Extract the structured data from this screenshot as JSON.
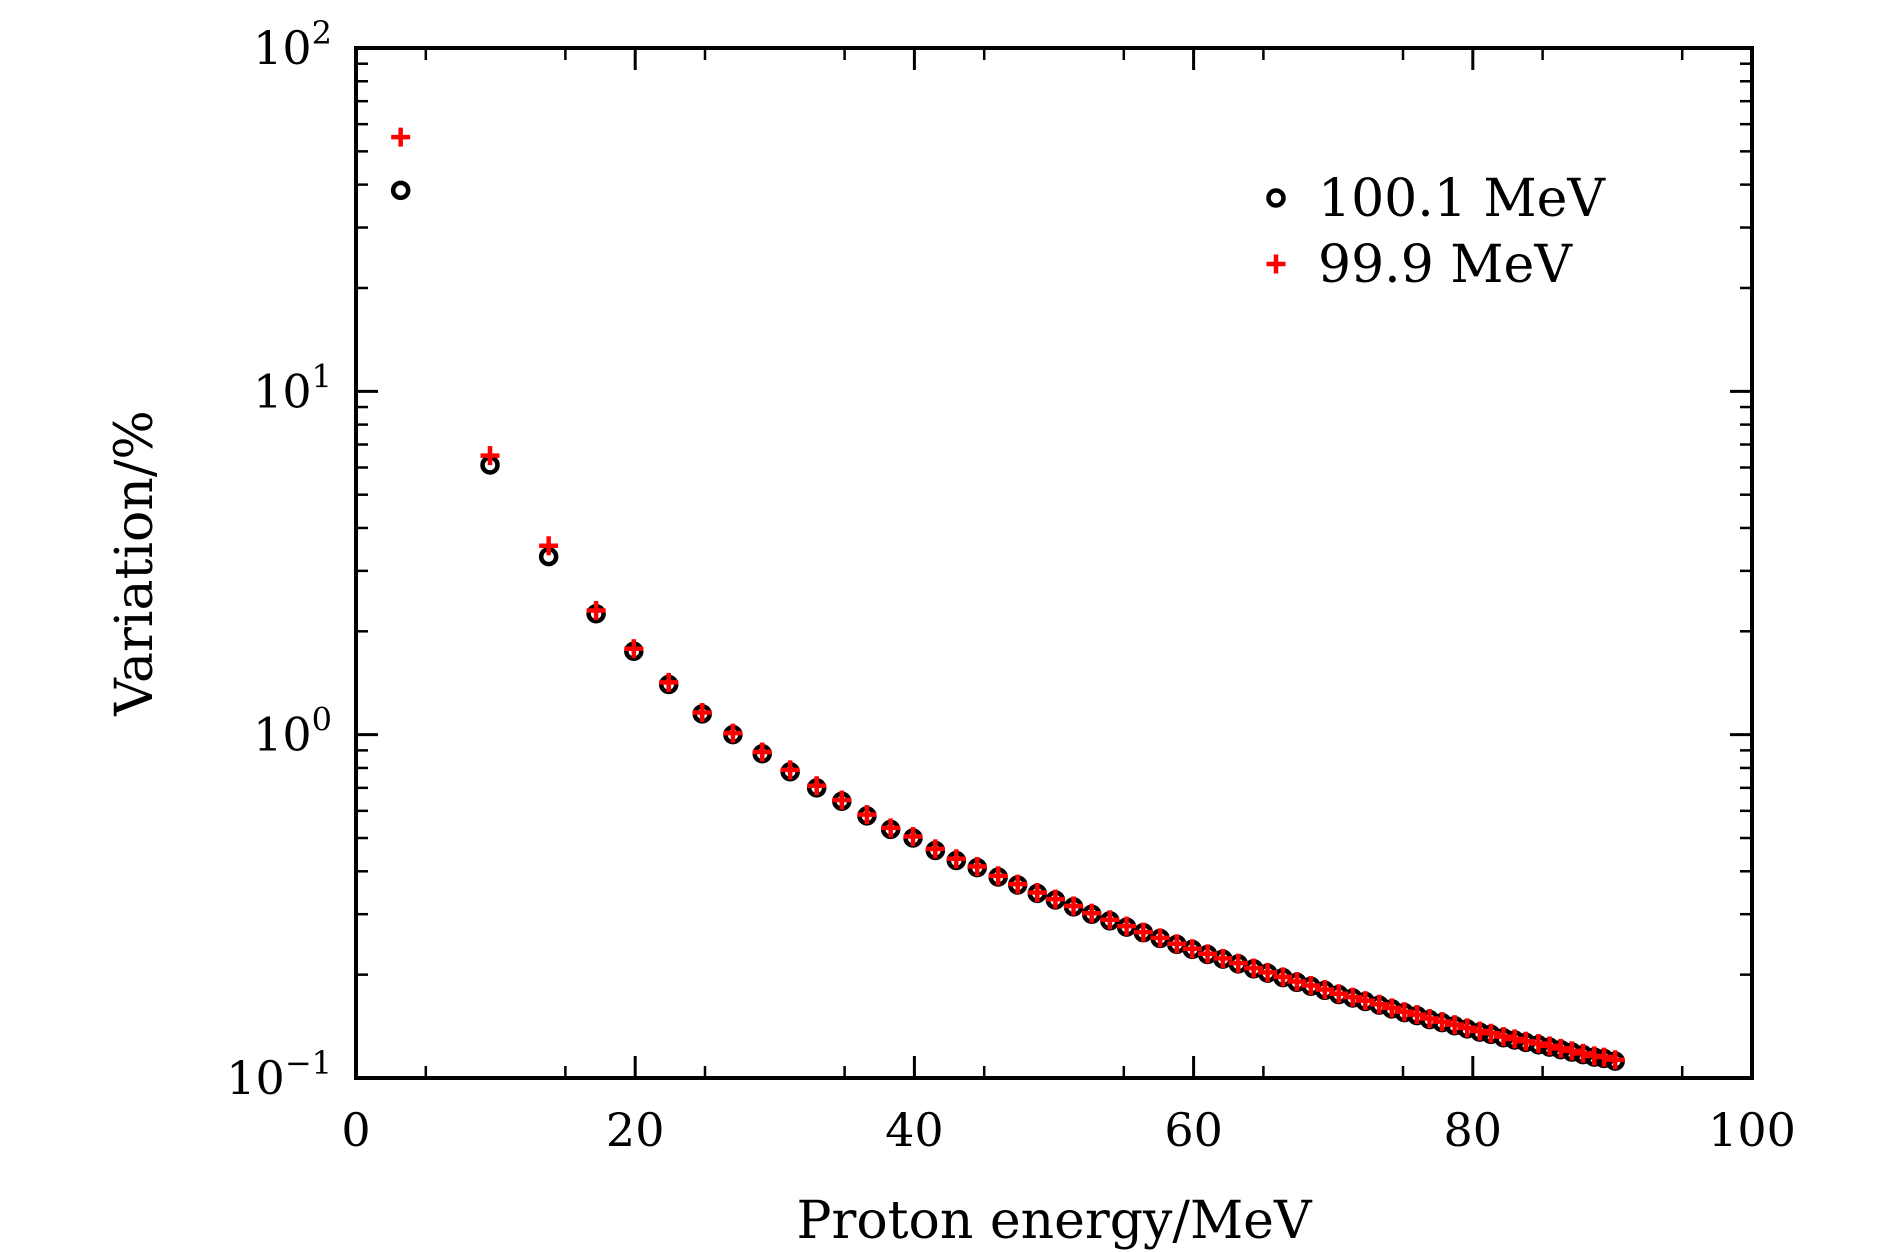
{
  "chart_data": {
    "type": "scatter",
    "title": "",
    "xlabel": "Proton energy/MeV",
    "ylabel": "Variation/%",
    "xlim": [
      0,
      100
    ],
    "ylim": [
      0.1,
      100
    ],
    "yscale": "log",
    "grid": false,
    "legend_position": "top-right",
    "x_ticks": [
      {
        "value": 0,
        "label": "0"
      },
      {
        "value": 20,
        "label": "20"
      },
      {
        "value": 40,
        "label": "40"
      },
      {
        "value": 60,
        "label": "60"
      },
      {
        "value": 80,
        "label": "80"
      },
      {
        "value": 100,
        "label": "100"
      }
    ],
    "y_ticks": [
      {
        "value": 0.1,
        "base": "10",
        "exp": "−1"
      },
      {
        "value": 1,
        "base": "10",
        "exp": "0"
      },
      {
        "value": 10,
        "base": "10",
        "exp": "1"
      },
      {
        "value": 100,
        "base": "10",
        "exp": "2"
      }
    ],
    "series": [
      {
        "name": "100.1 MeV",
        "marker": "open-circle",
        "color": "#000000",
        "x": [
          3.2,
          9.6,
          13.8,
          17.2,
          19.9,
          22.4,
          24.8,
          27.0,
          29.1,
          31.1,
          33.0,
          34.8,
          36.6,
          38.3,
          39.9,
          41.5,
          43.0,
          44.5,
          46.0,
          47.4,
          48.8,
          50.1,
          51.4,
          52.7,
          54.0,
          55.2,
          56.4,
          57.6,
          58.8,
          59.9,
          61.0,
          62.1,
          63.2,
          64.3,
          65.3,
          66.4,
          67.4,
          68.4,
          69.4,
          70.4,
          71.4,
          72.3,
          73.3,
          74.2,
          75.1,
          76.0,
          76.9,
          77.8,
          78.7,
          79.6,
          80.5,
          81.3,
          82.2,
          83.0,
          83.8,
          84.7,
          85.5,
          86.3,
          87.1,
          87.9,
          88.7,
          89.4,
          90.2
        ],
        "y": [
          38.5,
          6.1,
          3.3,
          2.25,
          1.75,
          1.4,
          1.15,
          1.0,
          0.88,
          0.78,
          0.7,
          0.64,
          0.58,
          0.53,
          0.5,
          0.46,
          0.43,
          0.41,
          0.385,
          0.365,
          0.345,
          0.33,
          0.315,
          0.3,
          0.287,
          0.275,
          0.265,
          0.255,
          0.245,
          0.237,
          0.229,
          0.222,
          0.215,
          0.208,
          0.202,
          0.196,
          0.19,
          0.185,
          0.18,
          0.175,
          0.171,
          0.167,
          0.163,
          0.159,
          0.155,
          0.152,
          0.148,
          0.145,
          0.142,
          0.139,
          0.136,
          0.134,
          0.131,
          0.129,
          0.127,
          0.125,
          0.123,
          0.121,
          0.119,
          0.117,
          0.115,
          0.114,
          0.112
        ]
      },
      {
        "name": "99.9 MeV",
        "marker": "plus",
        "color": "#ff0000",
        "x": [
          3.2,
          9.6,
          13.8,
          17.2,
          19.9,
          22.4,
          24.8,
          27.0,
          29.1,
          31.1,
          33.0,
          34.8,
          36.6,
          38.3,
          39.9,
          41.5,
          43.0,
          44.5,
          46.0,
          47.4,
          48.8,
          50.1,
          51.4,
          52.7,
          54.0,
          55.2,
          56.4,
          57.6,
          58.8,
          59.9,
          61.0,
          62.1,
          63.2,
          64.3,
          65.3,
          66.4,
          67.4,
          68.4,
          69.4,
          70.4,
          71.4,
          72.3,
          73.3,
          74.2,
          75.1,
          76.0,
          76.9,
          77.8,
          78.7,
          79.6,
          80.5,
          81.3,
          82.2,
          83.0,
          83.8,
          84.7,
          85.5,
          86.3,
          87.1,
          87.9,
          88.7,
          89.4,
          90.2
        ],
        "y": [
          55.0,
          6.5,
          3.55,
          2.3,
          1.78,
          1.42,
          1.16,
          1.01,
          0.89,
          0.79,
          0.71,
          0.645,
          0.585,
          0.535,
          0.505,
          0.465,
          0.435,
          0.413,
          0.388,
          0.367,
          0.347,
          0.332,
          0.317,
          0.302,
          0.289,
          0.277,
          0.266,
          0.256,
          0.246,
          0.238,
          0.23,
          0.223,
          0.216,
          0.209,
          0.203,
          0.197,
          0.191,
          0.186,
          0.181,
          0.176,
          0.172,
          0.168,
          0.164,
          0.16,
          0.156,
          0.153,
          0.149,
          0.146,
          0.143,
          0.14,
          0.137,
          0.135,
          0.132,
          0.13,
          0.128,
          0.126,
          0.124,
          0.122,
          0.12,
          0.118,
          0.116,
          0.115,
          0.113
        ]
      }
    ]
  }
}
